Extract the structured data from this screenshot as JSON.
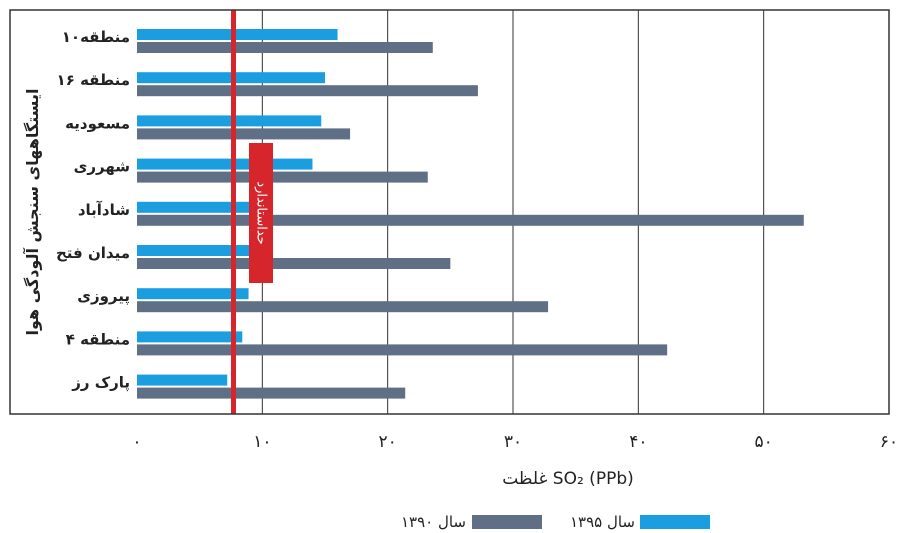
{
  "chart_data": {
    "type": "bar",
    "orientation": "horizontal",
    "ylabel": "ایستگاههای سنجش آلودگی هوا",
    "xlabel": "غلظت SO₂ (PPb)",
    "xlim": [
      0,
      60
    ],
    "xticks": [
      0,
      10,
      20,
      30,
      40,
      50,
      60
    ],
    "xtick_labels": [
      "۰",
      "۱۰",
      "۲۰",
      "۳۰",
      "۴۰",
      "۵۰",
      "۶۰"
    ],
    "grid": true,
    "legend_position": "bottom",
    "categories": [
      "منطقه۱۰",
      "منطقه ۱۶",
      "مسعودیه",
      "شهرری",
      "شادآباد",
      "میدان فتح",
      "پیروزی",
      "منطقه ۴",
      "پارک رز"
    ],
    "series": [
      {
        "name": "سال ۱۳۹۵",
        "color": "#1a9ee0",
        "values": [
          16,
          15,
          14.7,
          14,
          9.5,
          9.4,
          8.9,
          8.4,
          7.2
        ]
      },
      {
        "name": "سال ۱۳۹۰",
        "color": "#5f6f86",
        "values": [
          23.6,
          27.2,
          17,
          23.2,
          53.2,
          25,
          32.8,
          42.3,
          21.4
        ]
      }
    ],
    "reference_line": {
      "value": 7.7,
      "label": "حداستاندارد",
      "color": "#d6262b"
    }
  }
}
